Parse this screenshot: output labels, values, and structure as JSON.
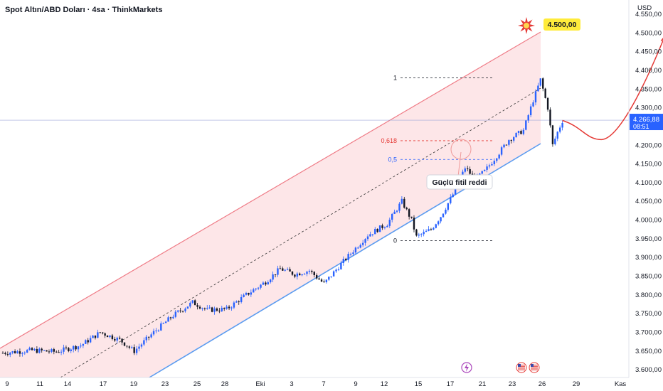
{
  "header": {
    "title": "Spot Altın/ABD Doları · 4sa · ThinkMarkets",
    "currency": "USD"
  },
  "price": {
    "current": "4.266,88",
    "countdown": "08:51",
    "current_value": 4266.88
  },
  "target": {
    "label": "4.500,00",
    "value": 4500
  },
  "annotation": {
    "text": "Güçlü fitil reddi"
  },
  "fib_levels": [
    {
      "label": "1",
      "value": 4380,
      "color": "#131722"
    },
    {
      "label": "0,618",
      "value": 4212,
      "color": "#e53935"
    },
    {
      "label": "0,5",
      "value": 4162,
      "color": "#2962ff"
    },
    {
      "label": "0",
      "value": 3945,
      "color": "#131722"
    }
  ],
  "colors": {
    "up": "#2962ff",
    "down": "#131722",
    "channel_fill": "#fde2e4",
    "channel_upper": "#ef7b86",
    "channel_lower": "#5b9cf0",
    "target_bg": "#ffeb3b",
    "price_tag_bg": "#2962ff",
    "projection": "#e53935"
  },
  "icons": [
    "explosion-icon",
    "lightning-event-icon",
    "us-flag-event-icon",
    "us-flag-event-icon"
  ],
  "chart_data": {
    "type": "candlestick",
    "ylim": [
      3600,
      4580
    ],
    "yticks": [
      {
        "label": "4.550,00",
        "value": 4550
      },
      {
        "label": "4.500,00",
        "value": 4500
      },
      {
        "label": "4.450,00",
        "value": 4450
      },
      {
        "label": "4.400,00",
        "value": 4400
      },
      {
        "label": "4.350,00",
        "value": 4350
      },
      {
        "label": "4.300,00",
        "value": 4300
      },
      {
        "label": "4.250,00",
        "value": 4250
      },
      {
        "label": "4.200,00",
        "value": 4200
      },
      {
        "label": "4.150,00",
        "value": 4150
      },
      {
        "label": "4.100,00",
        "value": 4100
      },
      {
        "label": "4.050,00",
        "value": 4050
      },
      {
        "label": "4.000,00",
        "value": 4000
      },
      {
        "label": "3.950,00",
        "value": 3950
      },
      {
        "label": "3.900,00",
        "value": 3900
      },
      {
        "label": "3.850,00",
        "value": 3850
      },
      {
        "label": "3.800,00",
        "value": 3800
      },
      {
        "label": "3.750,00",
        "value": 3750
      },
      {
        "label": "3.700,00",
        "value": 3700
      },
      {
        "label": "3.650,00",
        "value": 3650
      },
      {
        "label": "3.600,00",
        "value": 3600
      }
    ],
    "xticks": [
      "9",
      "11",
      "14",
      "17",
      "19",
      "23",
      "25",
      "28",
      "Eki",
      "3",
      "7",
      "9",
      "12",
      "15",
      "17",
      "21",
      "23",
      "26",
      "29",
      "Kas"
    ],
    "trend_path": [
      [
        0,
        3645
      ],
      [
        12,
        3652
      ],
      [
        22,
        3648
      ],
      [
        32,
        3665
      ],
      [
        40,
        3700
      ],
      [
        48,
        3680
      ],
      [
        54,
        3650
      ],
      [
        62,
        3700
      ],
      [
        70,
        3745
      ],
      [
        78,
        3780
      ],
      [
        84,
        3760
      ],
      [
        92,
        3762
      ],
      [
        100,
        3800
      ],
      [
        108,
        3835
      ],
      [
        114,
        3870
      ],
      [
        120,
        3855
      ],
      [
        126,
        3865
      ],
      [
        132,
        3830
      ],
      [
        140,
        3890
      ],
      [
        150,
        3960
      ],
      [
        158,
        3990
      ],
      [
        164,
        4050
      ],
      [
        168,
        4000
      ],
      [
        170,
        3955
      ],
      [
        176,
        3975
      ],
      [
        180,
        4010
      ],
      [
        186,
        4080
      ],
      [
        190,
        4140
      ],
      [
        194,
        4110
      ],
      [
        198,
        4130
      ],
      [
        204,
        4180
      ],
      [
        208,
        4215
      ],
      [
        214,
        4240
      ],
      [
        218,
        4320
      ],
      [
        221,
        4375
      ],
      [
        224,
        4300
      ],
      [
        226,
        4200
      ],
      [
        228,
        4235
      ],
      [
        230,
        4265
      ]
    ],
    "projection": [
      {
        "x": 230,
        "value": 4266
      },
      {
        "x": 238,
        "value": 4250
      },
      {
        "x": 246,
        "value": 4215
      },
      {
        "x": 262,
        "value": 4330
      },
      {
        "x": 272,
        "value": 4490
      }
    ]
  }
}
